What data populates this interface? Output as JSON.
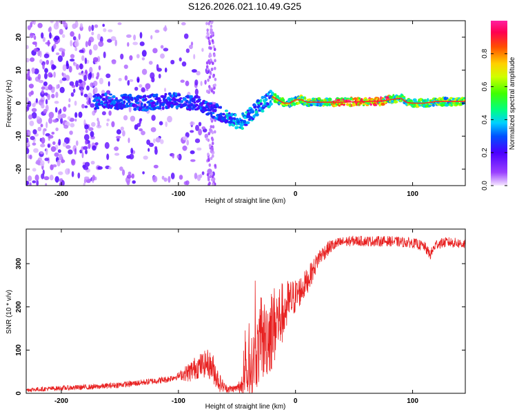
{
  "title": "S126.2026.021.10.49.G25",
  "chart_data": [
    {
      "type": "heatmap",
      "xlabel": "Height of straight line (km)",
      "ylabel": "Frequency (Hz)",
      "xlim": [
        -230,
        145
      ],
      "ylim": [
        -25,
        25
      ],
      "xticks": [
        -200,
        -100,
        0,
        100
      ],
      "yticks": [
        -20,
        -10,
        0,
        10,
        20
      ],
      "colorbar": {
        "label": "Normalized spectral amplitude",
        "range": [
          0,
          1
        ],
        "ticks": [
          "0.0",
          "0.2",
          "0.4",
          "0.6",
          "0.8"
        ]
      },
      "ridge": {
        "x": [
          -170,
          -150,
          -130,
          -110,
          -95,
          -85,
          -75,
          -65,
          -55,
          -48,
          -40,
          -33,
          -25,
          -20,
          -15,
          -10,
          -5,
          0,
          5,
          10,
          20,
          40,
          60,
          70,
          80,
          90,
          95,
          100,
          110,
          120,
          130,
          145
        ],
        "freq": [
          0.5,
          0.5,
          0.0,
          0.8,
          0.5,
          0.0,
          -1.5,
          -3.0,
          -5.0,
          -6.0,
          -4.0,
          -1.5,
          0.5,
          2.0,
          1.0,
          0.0,
          0.0,
          1.0,
          1.0,
          0.3,
          0.3,
          0.3,
          0.5,
          0.5,
          1.0,
          1.5,
          0.2,
          0.0,
          0.0,
          0.5,
          0.5,
          0.5
        ]
      }
    },
    {
      "type": "line",
      "xlabel": "Height of straight line (km)",
      "ylabel": "SNR (10 * v/v)",
      "xlim": [
        -230,
        145
      ],
      "ylim": [
        0,
        380
      ],
      "xticks": [
        -200,
        -100,
        0,
        100
      ],
      "yticks": [
        0,
        100,
        200,
        300
      ],
      "color": "#e82020",
      "profile": {
        "x": [
          -230,
          -200,
          -170,
          -140,
          -110,
          -100,
          -90,
          -85,
          -80,
          -75,
          -70,
          -65,
          -60,
          -55,
          -50,
          -45,
          -40,
          -35,
          -30,
          -25,
          -20,
          -15,
          -10,
          -5,
          0,
          5,
          10,
          15,
          20,
          30,
          40,
          50,
          60,
          80,
          100,
          110,
          115,
          120,
          130,
          145
        ],
        "snr": [
          8,
          12,
          15,
          22,
          32,
          40,
          50,
          60,
          65,
          70,
          55,
          25,
          12,
          10,
          12,
          20,
          45,
          80,
          110,
          130,
          150,
          170,
          190,
          210,
          225,
          240,
          260,
          285,
          315,
          340,
          350,
          353,
          352,
          352,
          348,
          340,
          320,
          345,
          350,
          345
        ]
      },
      "noise": {
        "x": [
          -230,
          -100,
          -90,
          -70,
          -60,
          -50,
          -40,
          -30,
          -20,
          -10,
          0,
          20,
          40,
          145
        ],
        "amp": [
          5,
          8,
          25,
          35,
          10,
          8,
          60,
          90,
          100,
          70,
          40,
          20,
          12,
          12
        ]
      }
    }
  ]
}
